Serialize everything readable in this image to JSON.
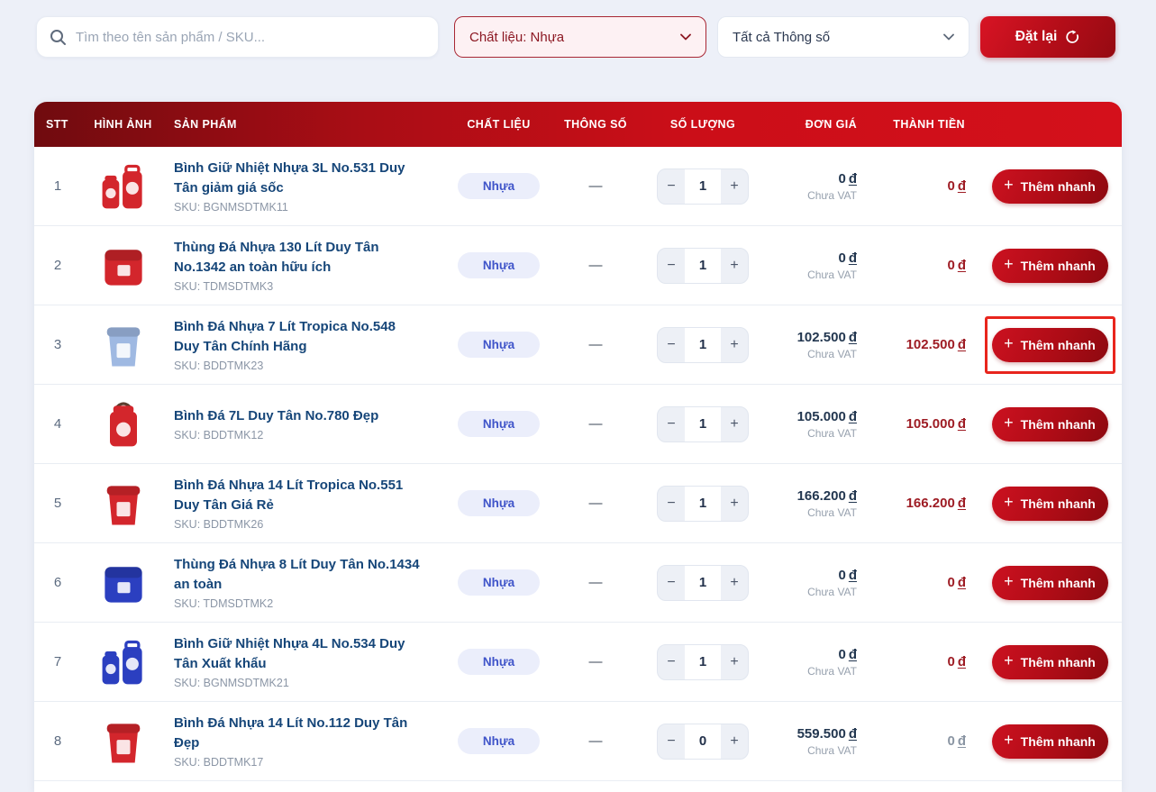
{
  "filters": {
    "search_placeholder": "Tìm theo tên sản phẩm / SKU...",
    "material_filter_value": "Chất liệu: Nhựa",
    "spec_filter_value": "Tất cả Thông số",
    "reset_label": "Đặt lại"
  },
  "icons": {
    "plus": "+",
    "minus": "−"
  },
  "colors": {
    "accent_red": "#c3101b",
    "header_gradient_start": "#700b0f",
    "header_gradient_end": "#d4101b",
    "badge_bg": "#ebeefb",
    "badge_text": "#3f54c9",
    "total_red": "#9e1c24",
    "highlight_box": "#e8251d"
  },
  "table": {
    "columns": [
      "STT",
      "HÌNH ẢNH",
      "SẢN PHẨM",
      "CHẤT LIỆU",
      "THÔNG SỐ",
      "SỐ LƯỢNG",
      "ĐƠN GIÁ",
      "THÀNH TIỀN"
    ],
    "rows": [
      {
        "stt": "1",
        "name": "Bình Giữ Nhiệt Nhựa 3L No.531 Duy Tân giảm giá sốc",
        "sku": "SKU: BGNMSDTMK11",
        "material": "Nhựa",
        "specs": "—",
        "qty": "1",
        "unit_price": {
          "amount": "0",
          "currency": "đ",
          "note": "Chưa VAT"
        },
        "total": {
          "amount": "0",
          "currency": "đ",
          "muted": false
        },
        "action": "Thêm nhanh",
        "image": {
          "kind": "bottles",
          "color": "#d3262c"
        },
        "highlight": false
      },
      {
        "stt": "2",
        "name": "Thùng Đá Nhựa 130 Lít Duy Tân No.1342 an toàn hữu ích",
        "sku": "SKU: TDMSDTMK3",
        "material": "Nhựa",
        "specs": "—",
        "qty": "1",
        "unit_price": {
          "amount": "0",
          "currency": "đ",
          "note": "Chưa VAT"
        },
        "total": {
          "amount": "0",
          "currency": "đ",
          "muted": false
        },
        "action": "Thêm nhanh",
        "image": {
          "kind": "box",
          "color": "#d3262c"
        },
        "highlight": false
      },
      {
        "stt": "3",
        "name": "Bình Đá Nhựa 7 Lít Tropica No.548 Duy Tân Chính Hãng",
        "sku": "SKU: BDDTMK23",
        "material": "Nhựa",
        "specs": "—",
        "qty": "1",
        "unit_price": {
          "amount": "102.500",
          "currency": "đ",
          "note": "Chưa VAT"
        },
        "total": {
          "amount": "102.500",
          "currency": "đ",
          "muted": false
        },
        "action": "Thêm nhanh",
        "image": {
          "kind": "bucket",
          "color": "#9fb9e2"
        },
        "highlight": true
      },
      {
        "stt": "4",
        "name": "Bình Đá 7L Duy Tân No.780 Đẹp",
        "sku": "SKU: BDDTMK12",
        "material": "Nhựa",
        "specs": "—",
        "qty": "1",
        "unit_price": {
          "amount": "105.000",
          "currency": "đ",
          "note": "Chưa VAT"
        },
        "total": {
          "amount": "105.000",
          "currency": "đ",
          "muted": false
        },
        "action": "Thêm nhanh",
        "image": {
          "kind": "jug",
          "color": "#d3262c"
        },
        "highlight": false
      },
      {
        "stt": "5",
        "name": "Bình Đá Nhựa 14 Lít Tropica No.551 Duy Tân Giá Rẻ",
        "sku": "SKU: BDDTMK26",
        "material": "Nhựa",
        "specs": "—",
        "qty": "1",
        "unit_price": {
          "amount": "166.200",
          "currency": "đ",
          "note": "Chưa VAT"
        },
        "total": {
          "amount": "166.200",
          "currency": "đ",
          "muted": false
        },
        "action": "Thêm nhanh",
        "image": {
          "kind": "bucket",
          "color": "#d3262c"
        },
        "highlight": false
      },
      {
        "stt": "6",
        "name": "Thùng Đá Nhựa 8 Lít Duy Tân No.1434 an toàn",
        "sku": "SKU: TDMSDTMK2",
        "material": "Nhựa",
        "specs": "—",
        "qty": "1",
        "unit_price": {
          "amount": "0",
          "currency": "đ",
          "note": "Chưa VAT"
        },
        "total": {
          "amount": "0",
          "currency": "đ",
          "muted": false
        },
        "action": "Thêm nhanh",
        "image": {
          "kind": "box",
          "color": "#2b3fc0"
        },
        "highlight": false
      },
      {
        "stt": "7",
        "name": "Bình Giữ Nhiệt Nhựa 4L No.534 Duy Tân Xuất khẩu",
        "sku": "SKU: BGNMSDTMK21",
        "material": "Nhựa",
        "specs": "—",
        "qty": "1",
        "unit_price": {
          "amount": "0",
          "currency": "đ",
          "note": "Chưa VAT"
        },
        "total": {
          "amount": "0",
          "currency": "đ",
          "muted": false
        },
        "action": "Thêm nhanh",
        "image": {
          "kind": "bottles",
          "color": "#2b3fc0"
        },
        "highlight": false
      },
      {
        "stt": "8",
        "name": "Bình Đá Nhựa 14 Lít No.112 Duy Tân Đẹp",
        "sku": "SKU: BDDTMK17",
        "material": "Nhựa",
        "specs": "—",
        "qty": "0",
        "unit_price": {
          "amount": "559.500",
          "currency": "đ",
          "note": "Chưa VAT"
        },
        "total": {
          "amount": "0",
          "currency": "đ",
          "muted": true
        },
        "action": "Thêm nhanh",
        "image": {
          "kind": "bucket",
          "color": "#d3262c"
        },
        "highlight": false
      }
    ]
  }
}
